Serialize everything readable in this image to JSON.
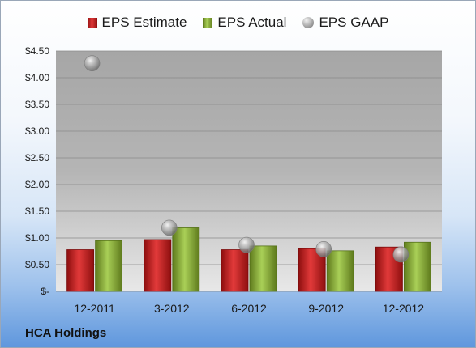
{
  "company": "HCA Holdings",
  "chart_data": {
    "type": "bar",
    "categories": [
      "12-2011",
      "3-2012",
      "6-2012",
      "9-2012",
      "12-2012"
    ],
    "series": [
      {
        "name": "EPS Estimate",
        "type": "bar",
        "color": "#c8201f",
        "values": [
          0.78,
          0.97,
          0.78,
          0.8,
          0.83
        ]
      },
      {
        "name": "EPS Actual",
        "type": "bar",
        "color": "#8fb63c",
        "values": [
          0.95,
          1.19,
          0.85,
          0.76,
          0.92
        ]
      },
      {
        "name": "EPS GAAP",
        "type": "scatter",
        "color": "#a0a0a0",
        "values": [
          4.27,
          1.19,
          0.87,
          0.79,
          0.69
        ]
      }
    ],
    "ylim": [
      0,
      4.5
    ],
    "yticks": [
      {
        "value": 4.5,
        "label": "$4.50"
      },
      {
        "value": 4.0,
        "label": "$4.00"
      },
      {
        "value": 3.5,
        "label": "$3.50"
      },
      {
        "value": 3.0,
        "label": "$3.00"
      },
      {
        "value": 2.5,
        "label": "$2.50"
      },
      {
        "value": 2.0,
        "label": "$2.00"
      },
      {
        "value": 1.5,
        "label": "$1.50"
      },
      {
        "value": 1.0,
        "label": "$1.00"
      },
      {
        "value": 0.5,
        "label": "$0.50"
      },
      {
        "value": 0,
        "label": "$-"
      }
    ],
    "grid": true,
    "legend_position": "top-center",
    "title": "",
    "xlabel": "",
    "ylabel": ""
  }
}
